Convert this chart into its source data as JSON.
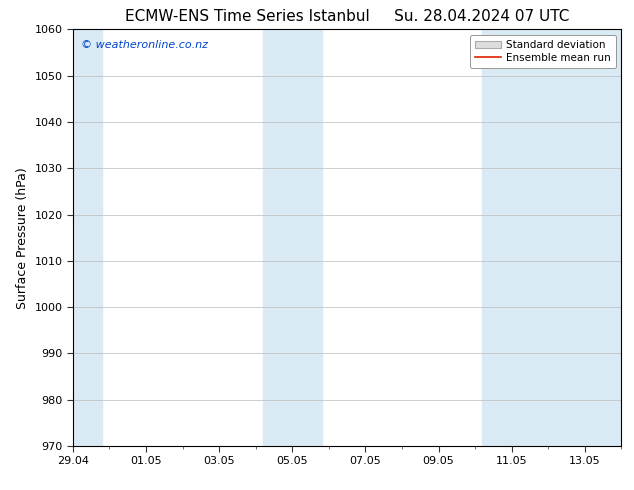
{
  "title": "ECMW-ENS Time Series Istanbul     Su. 28.04.2024 07 UTC",
  "ylabel": "Surface Pressure (hPa)",
  "ylim": [
    970,
    1060
  ],
  "yticks": [
    970,
    980,
    990,
    1000,
    1010,
    1020,
    1030,
    1040,
    1050,
    1060
  ],
  "xlim": [
    0,
    15
  ],
  "xtick_positions": [
    0,
    2,
    4,
    6,
    8,
    10,
    12,
    14
  ],
  "xtick_labels": [
    "29.04",
    "01.05",
    "03.05",
    "05.05",
    "07.05",
    "09.05",
    "11.05",
    "13.05"
  ],
  "shaded_bands": [
    {
      "x_start": 0.0,
      "x_end": 0.8
    },
    {
      "x_start": 5.2,
      "x_end": 6.8
    },
    {
      "x_start": 11.2,
      "x_end": 15.0
    }
  ],
  "band_color": "#daeaf5",
  "watermark": "© weatheronline.co.nz",
  "watermark_color": "#0044cc",
  "legend_std_label": "Standard deviation",
  "legend_mean_label": "Ensemble mean run",
  "legend_std_facecolor": "#dddddd",
  "legend_std_edgecolor": "#aaaaaa",
  "legend_mean_color": "#dd2200",
  "bg_color": "#ffffff",
  "axes_bg_color": "#ffffff",
  "title_fontsize": 11,
  "label_fontsize": 9,
  "tick_fontsize": 8,
  "watermark_fontsize": 8,
  "legend_fontsize": 7.5
}
